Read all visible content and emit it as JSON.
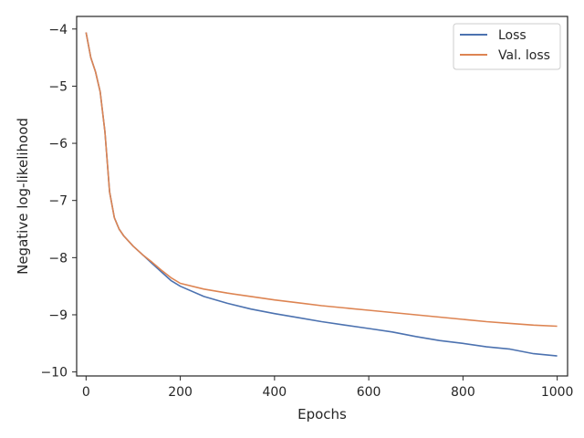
{
  "chart_data": {
    "type": "line",
    "title": "",
    "xlabel": "Epochs",
    "ylabel": "Negative log-likelihood",
    "xlim": [
      -20,
      1022
    ],
    "ylim": [
      -10.07,
      -3.78
    ],
    "xticks": [
      0,
      200,
      400,
      600,
      800,
      1000
    ],
    "xtick_labels": [
      "0",
      "200",
      "400",
      "600",
      "800",
      "1000"
    ],
    "yticks": [
      -4,
      -5,
      -6,
      -7,
      -8,
      -9,
      -10
    ],
    "ytick_labels": [
      "−4",
      "−5",
      "−6",
      "−7",
      "−8",
      "−9",
      "−10"
    ],
    "grid": false,
    "legend_position": "top-right",
    "series": [
      {
        "name": "Loss",
        "color": "#4c72b0",
        "x": [
          0,
          10,
          20,
          30,
          40,
          50,
          60,
          70,
          80,
          100,
          120,
          140,
          160,
          180,
          200,
          250,
          300,
          350,
          400,
          450,
          500,
          550,
          600,
          650,
          700,
          750,
          800,
          850,
          900,
          950,
          1000
        ],
        "y": [
          -4.06,
          -4.5,
          -4.75,
          -5.1,
          -5.8,
          -6.85,
          -7.3,
          -7.5,
          -7.62,
          -7.8,
          -7.95,
          -8.1,
          -8.25,
          -8.4,
          -8.5,
          -8.68,
          -8.8,
          -8.9,
          -8.98,
          -9.05,
          -9.12,
          -9.18,
          -9.24,
          -9.3,
          -9.38,
          -9.45,
          -9.5,
          -9.56,
          -9.6,
          -9.68,
          -9.72
        ]
      },
      {
        "name": "Val. loss",
        "color": "#dd8452",
        "x": [
          0,
          10,
          20,
          30,
          40,
          50,
          60,
          70,
          80,
          100,
          120,
          140,
          160,
          180,
          200,
          250,
          300,
          350,
          400,
          450,
          500,
          550,
          600,
          650,
          700,
          750,
          800,
          850,
          900,
          950,
          1000
        ],
        "y": [
          -4.06,
          -4.5,
          -4.75,
          -5.1,
          -5.8,
          -6.85,
          -7.3,
          -7.5,
          -7.62,
          -7.8,
          -7.95,
          -8.08,
          -8.22,
          -8.35,
          -8.45,
          -8.55,
          -8.62,
          -8.68,
          -8.74,
          -8.79,
          -8.84,
          -8.88,
          -8.92,
          -8.96,
          -9.0,
          -9.04,
          -9.08,
          -9.12,
          -9.15,
          -9.18,
          -9.2
        ]
      }
    ]
  }
}
